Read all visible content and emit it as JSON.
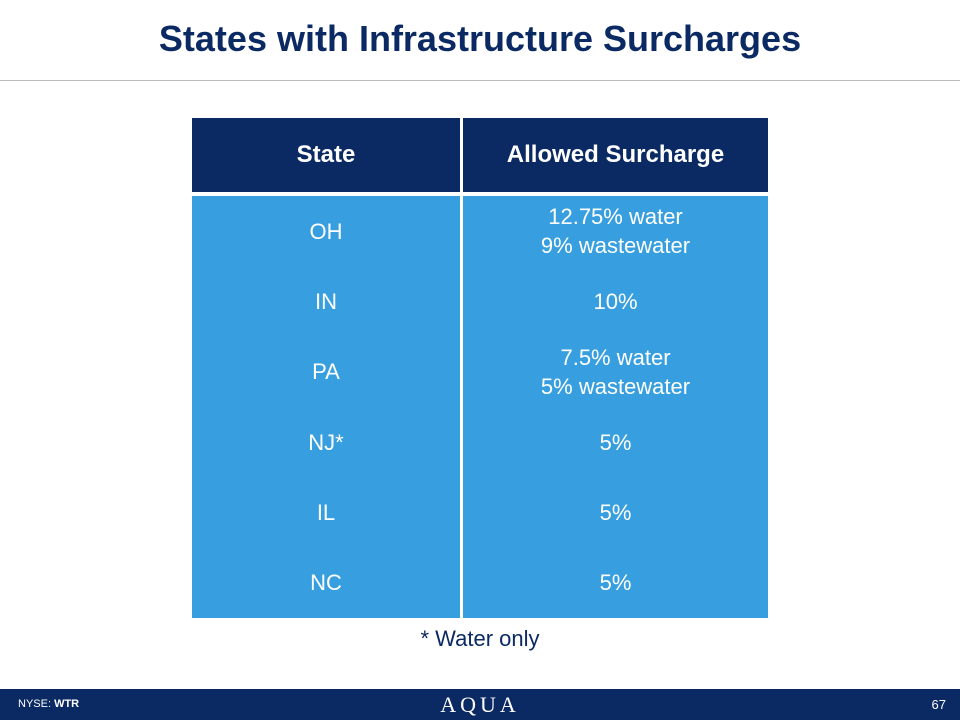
{
  "header": {
    "title": "States with Infrastructure Surcharges"
  },
  "table": {
    "columns": [
      "State",
      "Allowed Surcharge"
    ],
    "rows": [
      [
        "OH",
        [
          "12.75% water",
          "9% wastewater"
        ]
      ],
      [
        "IN",
        [
          "10%"
        ]
      ],
      [
        "PA",
        [
          "7.5% water",
          "5% wastewater"
        ]
      ],
      [
        "NJ*",
        [
          "5%"
        ]
      ],
      [
        "IL",
        [
          "5%"
        ]
      ],
      [
        "NC",
        [
          "5%"
        ]
      ]
    ]
  },
  "footnote": "* Water only",
  "footer": {
    "exchange": "NYSE:",
    "ticker": "WTR",
    "logo": "AQUA",
    "page": "67"
  }
}
